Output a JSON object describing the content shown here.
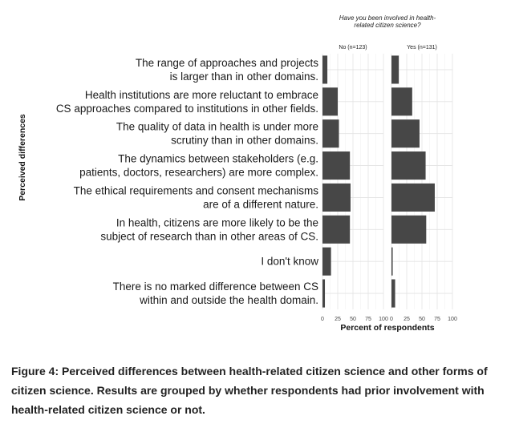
{
  "chart_data": {
    "type": "bar",
    "orientation": "horizontal",
    "legend_title": "Have you been involved in health-related citizen science?",
    "ylabel": "Perceived differences",
    "xlabel": "Percent of respondents",
    "xlim": [
      0,
      100
    ],
    "xticks": [
      0,
      25,
      50,
      75,
      100
    ],
    "grid": true,
    "bar_color": "#474747",
    "categories": [
      [
        "The range of approaches and projects",
        "is larger than in other domains."
      ],
      [
        "Health institutions are more reluctant to embrace",
        "CS approaches compared to institutions in other fields."
      ],
      [
        "The quality of data in health is under more",
        "scrutiny than in other domains."
      ],
      [
        "The dynamics between stakeholders (e.g.",
        "patients, doctors, researchers) are more complex."
      ],
      [
        "The ethical requirements and consent mechanisms",
        "are of a different nature."
      ],
      [
        "In health, citizens are more likely to be the",
        "subject of research than in other areas of CS."
      ],
      [
        "I don't know"
      ],
      [
        "There is no marked difference between CS",
        "within and outside the health domain."
      ]
    ],
    "series": [
      {
        "name": "No (n=123)",
        "values": [
          8,
          25,
          27,
          45,
          46,
          45,
          14,
          4
        ]
      },
      {
        "name": "Yes (n=131)",
        "values": [
          12,
          34,
          46,
          56,
          71,
          57,
          2,
          6
        ]
      }
    ]
  },
  "caption": "Figure 4: Perceived differences between health-related citizen science and other forms of citizen science. Results are grouped by whether respondents had prior involvement with health-related citizen science or not."
}
